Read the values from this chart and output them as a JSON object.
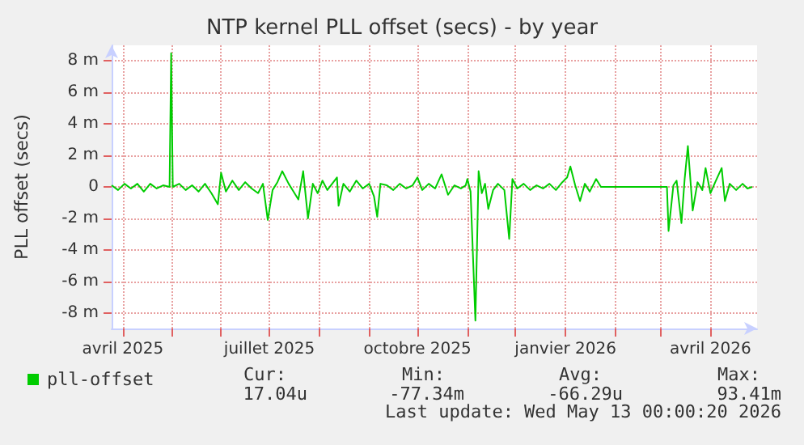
{
  "chart_data": {
    "type": "line",
    "title": "NTP kernel PLL offset (secs) - by year",
    "ylabel": "PLL offset (secs)",
    "annotations": [
      "Cur:",
      "Min:",
      "Avg:",
      "Max:",
      "17.04u",
      "-77.34m",
      "-66.29u",
      "93.41m",
      "Last update: Wed May 13 00:00:20 2026"
    ],
    "xlim": [
      "2025-03-25",
      "2026-04-30"
    ],
    "xticks": [
      {
        "value": "2025-04-01",
        "label": "avril 2025"
      },
      {
        "value": "2025-05-01",
        "label": null
      },
      {
        "value": "2025-06-01",
        "label": null
      },
      {
        "value": "2025-07-01",
        "label": "juillet 2025"
      },
      {
        "value": "2025-08-01",
        "label": null
      },
      {
        "value": "2025-09-01",
        "label": null
      },
      {
        "value": "2025-10-01",
        "label": "octobre 2025"
      },
      {
        "value": "2025-11-01",
        "label": null
      },
      {
        "value": "2025-12-01",
        "label": null
      },
      {
        "value": "2026-01-01",
        "label": "janvier 2026"
      },
      {
        "value": "2026-02-01",
        "label": null
      },
      {
        "value": "2026-03-01",
        "label": null
      },
      {
        "value": "2026-04-01",
        "label": "avril 2026"
      }
    ],
    "ylim": [
      -9,
      9
    ],
    "yticks": [
      {
        "value": -8,
        "label": "-8 m"
      },
      {
        "value": -6,
        "label": "-6 m"
      },
      {
        "value": -4,
        "label": "-4 m"
      },
      {
        "value": -2,
        "label": "-2 m"
      },
      0,
      {
        "value": 2,
        "label": "2 m"
      },
      {
        "value": 4,
        "label": "4 m"
      },
      {
        "value": 6,
        "label": "6 m"
      },
      {
        "value": 8,
        "label": "8 m"
      }
    ],
    "grid": true,
    "legend": "bottom left",
    "marker": "none",
    "line_style": "solid",
    "series": [
      {
        "name": "pll-offset",
        "color": "#00cc00",
        "x": [
          "2025-03-25",
          "2025-03-29",
          "2025-04-02",
          "2025-04-06",
          "2025-04-10",
          "2025-04-14",
          "2025-04-18",
          "2025-04-22",
          "2025-04-26",
          "2025-04-30",
          "2025-05-01",
          "2025-05-02",
          "2025-05-06",
          "2025-05-10",
          "2025-05-14",
          "2025-05-18",
          "2025-05-22",
          "2025-05-26",
          "2025-05-30",
          "2025-06-01",
          "2025-06-04",
          "2025-06-08",
          "2025-06-12",
          "2025-06-16",
          "2025-06-20",
          "2025-06-24",
          "2025-06-27",
          "2025-06-30",
          "2025-07-03",
          "2025-07-06",
          "2025-07-09",
          "2025-07-13",
          "2025-07-16",
          "2025-07-19",
          "2025-07-22",
          "2025-07-25",
          "2025-07-28",
          "2025-07-31",
          "2025-08-03",
          "2025-08-06",
          "2025-08-09",
          "2025-08-12",
          "2025-08-13",
          "2025-08-16",
          "2025-08-20",
          "2025-08-24",
          "2025-08-28",
          "2025-09-01",
          "2025-09-04",
          "2025-09-06",
          "2025-09-08",
          "2025-09-12",
          "2025-09-16",
          "2025-09-20",
          "2025-09-24",
          "2025-09-28",
          "2025-10-01",
          "2025-10-04",
          "2025-10-08",
          "2025-10-12",
          "2025-10-16",
          "2025-10-20",
          "2025-10-24",
          "2025-10-28",
          "2025-10-31",
          "2025-11-01",
          "2025-11-03",
          "2025-11-06",
          "2025-11-08",
          "2025-11-10",
          "2025-11-12",
          "2025-11-14",
          "2025-11-17",
          "2025-11-20",
          "2025-11-24",
          "2025-11-27",
          "2025-11-29",
          "2025-12-02",
          "2025-12-06",
          "2025-12-10",
          "2025-12-14",
          "2025-12-18",
          "2025-12-22",
          "2025-12-26",
          "2025-12-30",
          "2026-01-02",
          "2026-01-04",
          "2026-01-07",
          "2026-01-10",
          "2026-01-13",
          "2026-01-16",
          "2026-01-20",
          "2026-01-23",
          "2026-03-05",
          "2026-03-06",
          "2026-03-09",
          "2026-03-11",
          "2026-03-14",
          "2026-03-16",
          "2026-03-18",
          "2026-03-21",
          "2026-03-24",
          "2026-03-27",
          "2026-03-29",
          "2026-04-01",
          "2026-04-04",
          "2026-04-08",
          "2026-04-10",
          "2026-04-13",
          "2026-04-17",
          "2026-04-21",
          "2026-04-24",
          "2026-04-27"
        ],
        "values": [
          0.1,
          -0.2,
          0.2,
          -0.1,
          0.2,
          -0.3,
          0.2,
          -0.1,
          0.1,
          0,
          8.5,
          0,
          0.2,
          -0.2,
          0.1,
          -0.3,
          0.2,
          -0.4,
          -1.1,
          0.9,
          -0.3,
          0.4,
          -0.2,
          0.3,
          -0.1,
          -0.4,
          0.2,
          -2.1,
          -0.2,
          0.3,
          1,
          0.2,
          -0.3,
          -0.8,
          1,
          -2,
          0.2,
          -0.4,
          0.4,
          -0.2,
          0.2,
          0.6,
          -1.2,
          0.2,
          -0.3,
          0.4,
          -0.1,
          0.2,
          -0.6,
          -1.9,
          0.2,
          0.1,
          -0.2,
          0.2,
          -0.1,
          0.1,
          0.6,
          -0.2,
          0.2,
          -0.1,
          0.8,
          -0.5,
          0.1,
          -0.1,
          0.1,
          0.5,
          -0.3,
          -8.5,
          1,
          -0.4,
          0.2,
          -1.4,
          -0.2,
          0.2,
          -0.2,
          -3.3,
          0.5,
          -0.1,
          0.2,
          -0.2,
          0.1,
          -0.1,
          0.2,
          -0.2,
          0.3,
          0.6,
          1.3,
          0.1,
          -0.9,
          0.2,
          -0.3,
          0.5,
          0,
          0,
          -2.8,
          0.1,
          0.4,
          -2.3,
          0.5,
          2.6,
          -1.5,
          0.3,
          -0.2,
          1.2,
          -0.4,
          0.3,
          1.2,
          -0.9,
          0.2,
          -0.2,
          0.2,
          -0.1,
          0
        ]
      }
    ]
  }
}
